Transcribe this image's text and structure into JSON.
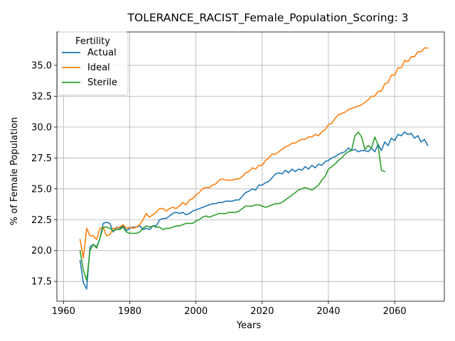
{
  "chart_data": {
    "type": "line",
    "title": "TOLERANCE_RACIST_Female_Population_Scoring: 3",
    "xlabel": "Years",
    "ylabel": "% of Female Population",
    "xlim": [
      1958,
      2075
    ],
    "ylim": [
      15.9,
      37.7
    ],
    "xticks": [
      1960,
      1980,
      2000,
      2020,
      2040,
      2060
    ],
    "xtick_labels": [
      "1960",
      "1980",
      "2000",
      "2020",
      "2040",
      "2060"
    ],
    "yticks": [
      17.5,
      20.0,
      22.5,
      25.0,
      27.5,
      30.0,
      32.5,
      35.0
    ],
    "ytick_labels": [
      "17.5",
      "20.0",
      "22.5",
      "25.0",
      "27.5",
      "30.0",
      "32.5",
      "35.0"
    ],
    "grid": true,
    "legend": {
      "title": "Fertility",
      "placement": "upper-left"
    },
    "series": [
      {
        "name": "Actual",
        "color": "#1f77b4",
        "x": [
          1965,
          1966,
          1967,
          1968,
          1969,
          1970,
          1971,
          1972,
          1973,
          1974,
          1975,
          1976,
          1977,
          1978,
          1979,
          1980,
          1981,
          1982,
          1983,
          1984,
          1985,
          1986,
          1987,
          1988,
          1989,
          1990,
          1991,
          1992,
          1993,
          1994,
          1995,
          1996,
          1997,
          1998,
          1999,
          2000,
          2001,
          2002,
          2003,
          2004,
          2005,
          2006,
          2007,
          2008,
          2009,
          2010,
          2011,
          2012,
          2013,
          2014,
          2015,
          2016,
          2017,
          2018,
          2019,
          2020,
          2021,
          2022,
          2023,
          2024,
          2025,
          2026,
          2027,
          2028,
          2029,
          2030,
          2031,
          2032,
          2033,
          2034,
          2035,
          2036,
          2037,
          2038,
          2039,
          2040,
          2041,
          2042,
          2043,
          2044,
          2045,
          2046,
          2047,
          2048,
          2049,
          2050,
          2051,
          2052,
          2053,
          2054,
          2055,
          2056,
          2057,
          2058,
          2059,
          2060,
          2061,
          2062,
          2063,
          2064,
          2065,
          2066,
          2067,
          2068,
          2069,
          2070
        ],
        "y": [
          19.2,
          17.4,
          16.9,
          20.3,
          20.5,
          20.3,
          21.0,
          22.2,
          22.3,
          22.2,
          21.5,
          21.9,
          21.8,
          22.0,
          21.6,
          21.8,
          21.9,
          21.9,
          22.0,
          21.7,
          21.8,
          21.7,
          22.0,
          22.0,
          22.5,
          22.6,
          22.6,
          22.8,
          23.0,
          23.1,
          23.0,
          23.1,
          22.9,
          23.0,
          23.2,
          23.3,
          23.4,
          23.5,
          23.6,
          23.7,
          23.8,
          23.8,
          23.9,
          23.9,
          24.0,
          24.0,
          24.0,
          24.1,
          24.1,
          24.4,
          24.7,
          24.8,
          25.0,
          24.9,
          25.3,
          25.3,
          25.5,
          25.6,
          25.9,
          26.2,
          26.3,
          26.2,
          26.5,
          26.3,
          26.6,
          26.4,
          26.6,
          26.5,
          26.8,
          26.6,
          26.9,
          26.7,
          27.0,
          26.9,
          27.2,
          27.3,
          27.5,
          27.6,
          27.8,
          27.9,
          28.0,
          28.3,
          28.1,
          28.2,
          28.0,
          28.1,
          28.1,
          28.0,
          28.3,
          28.0,
          28.6,
          28.1,
          28.8,
          28.5,
          29.1,
          28.9,
          29.4,
          29.3,
          29.6,
          29.4,
          29.5,
          29.1,
          29.3,
          28.8,
          29.0,
          28.5
        ]
      },
      {
        "name": "Ideal",
        "color": "#ff7f0e",
        "x": [
          1965,
          1966,
          1967,
          1968,
          1969,
          1970,
          1971,
          1972,
          1973,
          1974,
          1975,
          1976,
          1977,
          1978,
          1979,
          1980,
          1981,
          1982,
          1983,
          1984,
          1985,
          1986,
          1987,
          1988,
          1989,
          1990,
          1991,
          1992,
          1993,
          1994,
          1995,
          1996,
          1997,
          1998,
          1999,
          2000,
          2001,
          2002,
          2003,
          2004,
          2005,
          2006,
          2007,
          2008,
          2009,
          2010,
          2011,
          2012,
          2013,
          2014,
          2015,
          2016,
          2017,
          2018,
          2019,
          2020,
          2021,
          2022,
          2023,
          2024,
          2025,
          2026,
          2027,
          2028,
          2029,
          2030,
          2031,
          2032,
          2033,
          2034,
          2035,
          2036,
          2037,
          2038,
          2039,
          2040,
          2041,
          2042,
          2043,
          2044,
          2045,
          2046,
          2047,
          2048,
          2049,
          2050,
          2051,
          2052,
          2053,
          2054,
          2055,
          2056,
          2057,
          2058,
          2059,
          2060,
          2061,
          2062,
          2063,
          2064,
          2065,
          2066,
          2067,
          2068,
          2069,
          2070
        ],
        "y": [
          20.9,
          19.4,
          21.8,
          21.2,
          21.2,
          20.9,
          21.8,
          21.9,
          21.2,
          21.3,
          21.8,
          21.8,
          21.9,
          22.1,
          21.8,
          21.9,
          21.8,
          21.9,
          22.1,
          22.5,
          23.0,
          22.7,
          22.9,
          23.1,
          23.4,
          23.4,
          23.2,
          23.4,
          23.5,
          23.4,
          23.6,
          23.9,
          23.7,
          24.1,
          24.2,
          24.5,
          24.7,
          25.0,
          25.1,
          25.1,
          25.3,
          25.4,
          25.7,
          25.8,
          25.7,
          25.7,
          25.7,
          25.8,
          25.8,
          26.0,
          26.3,
          26.4,
          26.7,
          26.6,
          26.9,
          26.9,
          27.3,
          27.5,
          27.8,
          27.8,
          28.0,
          28.2,
          28.4,
          28.5,
          28.7,
          28.7,
          28.9,
          29.0,
          29.0,
          29.2,
          29.2,
          29.4,
          29.3,
          29.6,
          29.8,
          30.2,
          30.3,
          30.7,
          31.0,
          31.1,
          31.2,
          31.4,
          31.5,
          31.6,
          31.7,
          31.8,
          32.0,
          32.2,
          32.5,
          32.5,
          32.9,
          32.9,
          33.5,
          33.6,
          34.2,
          34.2,
          34.8,
          34.8,
          35.4,
          35.3,
          35.7,
          35.7,
          36.1,
          36.1,
          36.4,
          36.4
        ]
      },
      {
        "name": "Sterile",
        "color": "#2ca02c",
        "x": [
          1965,
          1966,
          1967,
          1968,
          1969,
          1970,
          1971,
          1972,
          1973,
          1974,
          1975,
          1976,
          1977,
          1978,
          1979,
          1980,
          1981,
          1982,
          1983,
          1984,
          1985,
          1986,
          1987,
          1988,
          1989,
          1990,
          1991,
          1992,
          1993,
          1994,
          1995,
          1996,
          1997,
          1998,
          1999,
          2000,
          2001,
          2002,
          2003,
          2004,
          2005,
          2006,
          2007,
          2008,
          2009,
          2010,
          2011,
          2012,
          2013,
          2014,
          2015,
          2016,
          2017,
          2018,
          2019,
          2020,
          2021,
          2022,
          2023,
          2024,
          2025,
          2026,
          2027,
          2028,
          2029,
          2030,
          2031,
          2032,
          2033,
          2034,
          2035,
          2036,
          2037,
          2038,
          2039,
          2040,
          2041,
          2042,
          2043,
          2044,
          2045,
          2046,
          2047,
          2048,
          2049,
          2050,
          2051,
          2052,
          2053,
          2054,
          2055,
          2056,
          2057
        ],
        "y": [
          20.0,
          18.4,
          17.6,
          20.0,
          20.5,
          20.2,
          21.0,
          21.9,
          21.9,
          21.8,
          21.6,
          21.7,
          21.7,
          21.9,
          21.5,
          21.4,
          21.4,
          21.4,
          21.5,
          21.8,
          22.0,
          21.9,
          22.0,
          21.9,
          21.9,
          21.7,
          21.8,
          21.8,
          21.9,
          22.0,
          22.0,
          22.1,
          22.2,
          22.2,
          22.2,
          22.4,
          22.5,
          22.7,
          22.8,
          22.7,
          22.8,
          22.9,
          23.0,
          23.0,
          23.0,
          23.1,
          23.1,
          23.1,
          23.2,
          23.4,
          23.6,
          23.6,
          23.6,
          23.7,
          23.7,
          23.6,
          23.5,
          23.6,
          23.7,
          23.8,
          23.8,
          23.9,
          24.1,
          24.3,
          24.5,
          24.7,
          24.9,
          25.0,
          25.1,
          25.0,
          24.9,
          25.1,
          25.3,
          25.7,
          26.0,
          26.6,
          26.8,
          27.0,
          27.3,
          27.5,
          27.8,
          28.0,
          28.1,
          29.3,
          29.6,
          29.2,
          28.2,
          28.5,
          28.3,
          29.2,
          28.5,
          26.5,
          26.4
        ]
      }
    ]
  }
}
